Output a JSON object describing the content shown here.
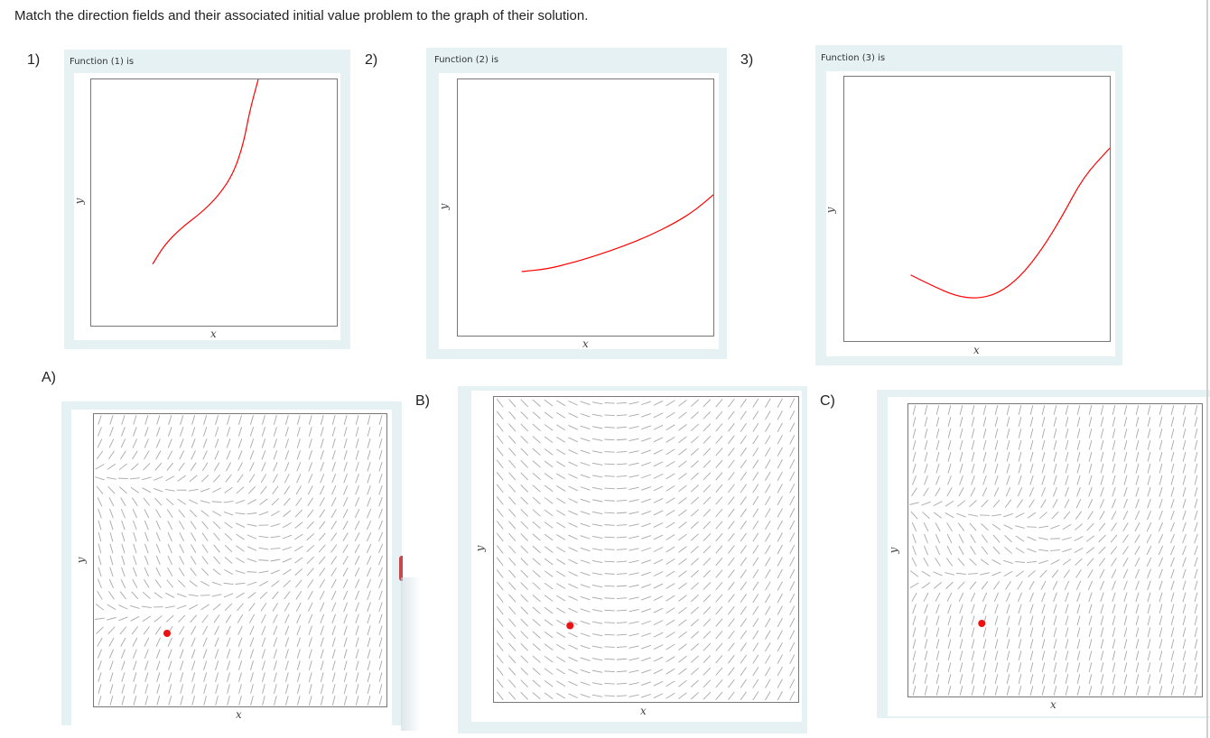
{
  "prompt": "Match the direction fields and their associated initial value problem to the graph of their solution.",
  "colors": {
    "panel_bg": "#e6f1f3",
    "curve": "#ff0000",
    "field": "#a8a8a8",
    "dot": "#ee1111",
    "axis": "#777777"
  },
  "functions": [
    {
      "number": "1)",
      "title": "Function (1) is",
      "xlabel": "x",
      "ylabel": "y",
      "curve_points": [
        [
          0.25,
          0.25
        ],
        [
          0.3,
          0.33
        ],
        [
          0.37,
          0.4
        ],
        [
          0.45,
          0.46
        ],
        [
          0.52,
          0.53
        ],
        [
          0.58,
          0.62
        ],
        [
          0.62,
          0.74
        ],
        [
          0.645,
          0.87
        ],
        [
          0.68,
          1.0
        ]
      ]
    },
    {
      "number": "2)",
      "title": "Function (2) is",
      "xlabel": "x",
      "ylabel": "y",
      "curve_points": [
        [
          0.25,
          0.25
        ],
        [
          0.35,
          0.26
        ],
        [
          0.45,
          0.285
        ],
        [
          0.55,
          0.315
        ],
        [
          0.65,
          0.35
        ],
        [
          0.75,
          0.39
        ],
        [
          0.85,
          0.44
        ],
        [
          0.93,
          0.49
        ],
        [
          1.0,
          0.55
        ]
      ]
    },
    {
      "number": "3)",
      "title": "Function (3) is",
      "xlabel": "x",
      "ylabel": "y",
      "curve_points": [
        [
          0.25,
          0.25
        ],
        [
          0.33,
          0.21
        ],
        [
          0.42,
          0.17
        ],
        [
          0.5,
          0.16
        ],
        [
          0.58,
          0.18
        ],
        [
          0.66,
          0.24
        ],
        [
          0.74,
          0.34
        ],
        [
          0.82,
          0.47
        ],
        [
          0.9,
          0.62
        ],
        [
          1.0,
          0.73
        ]
      ]
    }
  ],
  "direction_fields": [
    {
      "label": "A)",
      "xlabel": "x",
      "ylabel": "y",
      "initial_point": [
        0.25,
        0.25
      ],
      "grid": 25
    },
    {
      "label": "B)",
      "xlabel": "x",
      "ylabel": "y",
      "initial_point": [
        0.25,
        0.25
      ],
      "grid": 25
    },
    {
      "label": "C)",
      "xlabel": "x",
      "ylabel": "y",
      "initial_point": [
        0.25,
        0.25
      ],
      "grid": 25
    }
  ],
  "chart_data": [
    {
      "type": "line",
      "title": "Function (1) is",
      "xlabel": "x",
      "ylabel": "y",
      "description": "S-shaped increasing curve starting at the initial point, steepening to vertical near top"
    },
    {
      "type": "line",
      "title": "Function (2) is",
      "xlabel": "x",
      "ylabel": "y",
      "description": "Gently increasing, slightly convex curve"
    },
    {
      "type": "line",
      "title": "Function (3) is",
      "xlabel": "x",
      "ylabel": "y",
      "description": "Decreases to a minimum then rises steeply"
    },
    {
      "type": "scatter",
      "title": "A) direction field",
      "xlabel": "x",
      "ylabel": "y",
      "initial_point": "red dot lower-left"
    },
    {
      "type": "scatter",
      "title": "B) direction field",
      "xlabel": "x",
      "ylabel": "y",
      "initial_point": "red dot lower-left"
    },
    {
      "type": "scatter",
      "title": "C) direction field",
      "xlabel": "x",
      "ylabel": "y",
      "initial_point": "red dot lower-left"
    }
  ]
}
